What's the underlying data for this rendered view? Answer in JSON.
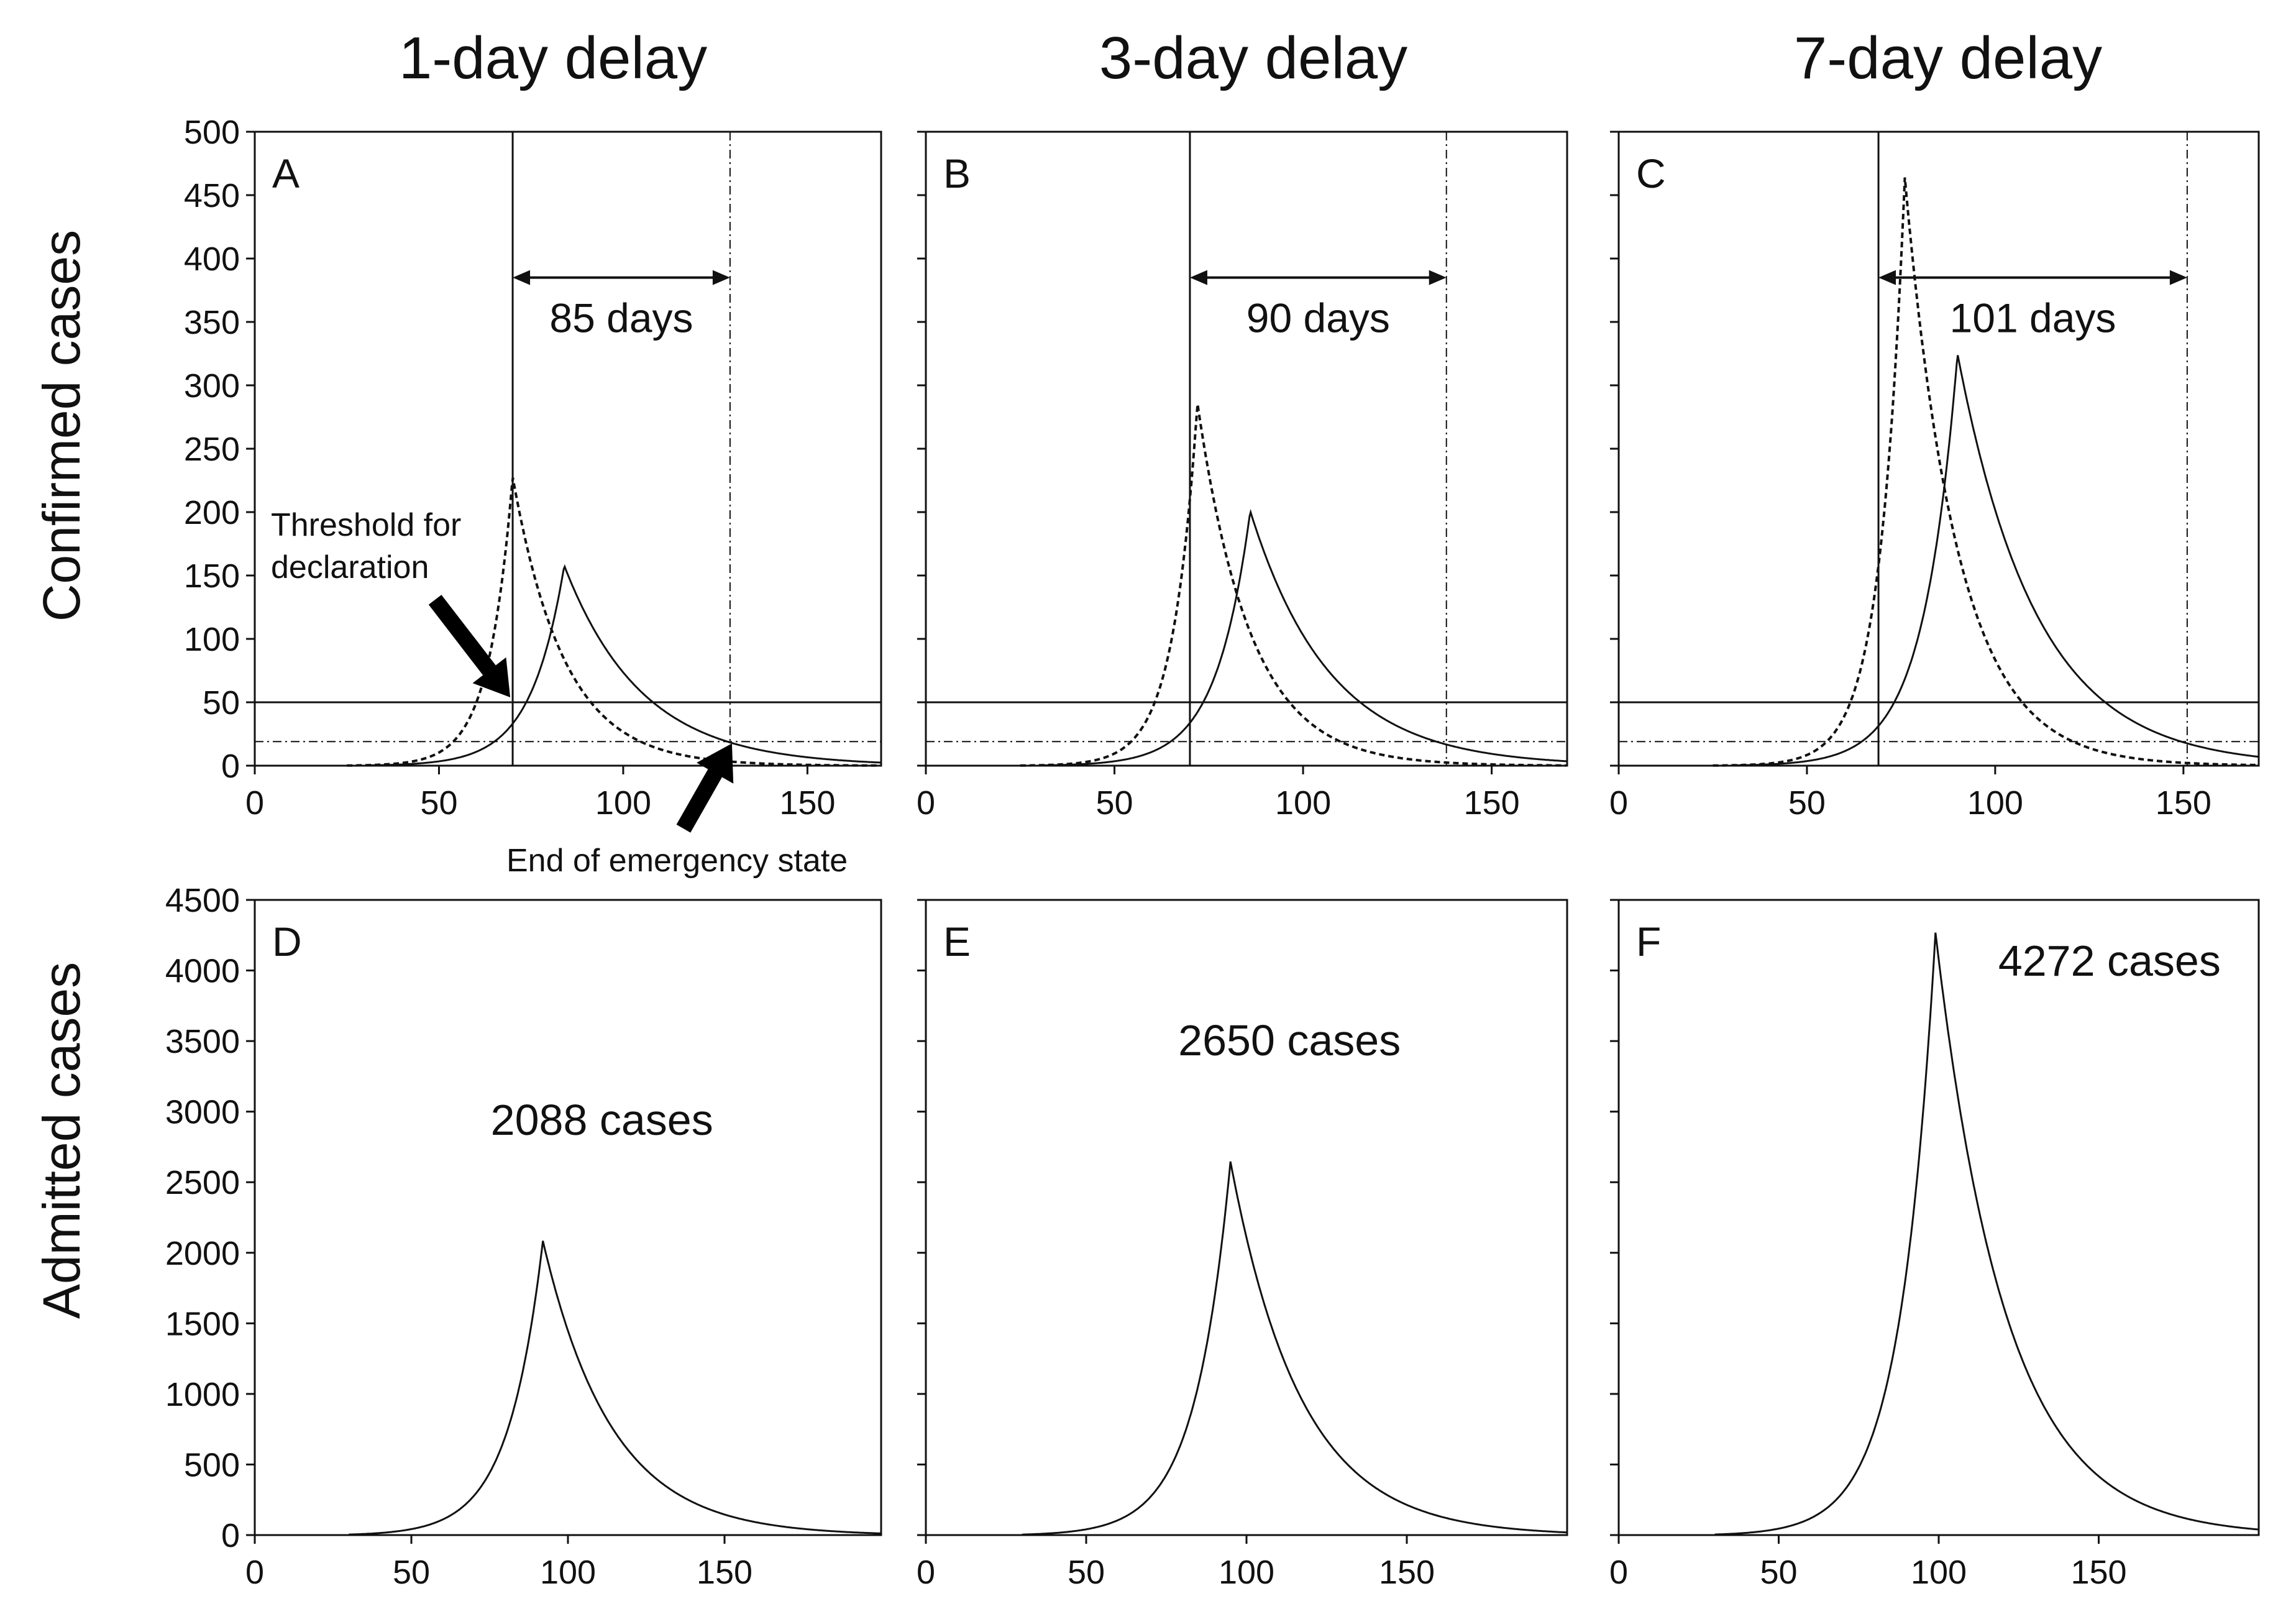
{
  "figure": {
    "column_titles": [
      "1-day delay",
      "3-day delay",
      "7-day delay"
    ],
    "row_ylabels": [
      "Confirmed cases",
      "Admitted cases"
    ],
    "annotations": {
      "threshold_label_line1": "Threshold for",
      "threshold_label_line2": "declaration",
      "end_label": "End of emergency state"
    }
  },
  "colors": {
    "line": "#111111",
    "axis": "#111111",
    "background": "#ffffff"
  },
  "chart_data": [
    {
      "panel": "A",
      "row": "confirmed",
      "type": "line",
      "title": "1-day delay",
      "xlabel": "",
      "ylabel": "Confirmed cases",
      "xlim": [
        0,
        170
      ],
      "ylim": [
        0,
        500
      ],
      "xticks": [
        0,
        50,
        100,
        150
      ],
      "yticks": [
        0,
        50,
        100,
        150,
        200,
        250,
        300,
        350,
        400,
        450,
        500
      ],
      "threshold_declaration": 50,
      "threshold_end": 19,
      "declaration_day": 70,
      "end_day": 129,
      "duration_label": "85 days",
      "series": [
        {
          "name": "daily new cases (dashed)",
          "style": "dashed",
          "start": 25,
          "peak_x": 70,
          "peak_y": 228,
          "rise": 6.5,
          "decay": 14
        },
        {
          "name": "confirmed cases (solid)",
          "style": "solid",
          "start": 30,
          "peak_x": 84,
          "peak_y": 158,
          "rise": 9,
          "decay": 21
        }
      ]
    },
    {
      "panel": "B",
      "row": "confirmed",
      "type": "line",
      "title": "3-day delay",
      "xlabel": "",
      "ylabel": "",
      "xlim": [
        0,
        170
      ],
      "ylim": [
        0,
        500
      ],
      "xticks": [
        0,
        50,
        100,
        150
      ],
      "yticks": [
        0,
        50,
        100,
        150,
        200,
        250,
        300,
        350,
        400,
        450,
        500
      ],
      "threshold_declaration": 50,
      "threshold_end": 19,
      "declaration_day": 70,
      "end_day": 138,
      "duration_label": "90 days",
      "series": [
        {
          "name": "daily new cases (dashed)",
          "style": "dashed",
          "start": 25,
          "peak_x": 72,
          "peak_y": 286,
          "rise": 6.5,
          "decay": 14
        },
        {
          "name": "confirmed cases (solid)",
          "style": "solid",
          "start": 30,
          "peak_x": 86,
          "peak_y": 201,
          "rise": 9,
          "decay": 21
        }
      ]
    },
    {
      "panel": "C",
      "row": "confirmed",
      "type": "line",
      "title": "7-day delay",
      "xlabel": "",
      "ylabel": "",
      "xlim": [
        0,
        170
      ],
      "ylim": [
        0,
        500
      ],
      "xticks": [
        0,
        50,
        100,
        150
      ],
      "yticks": [
        0,
        50,
        100,
        150,
        200,
        250,
        300,
        350,
        400,
        450,
        500
      ],
      "threshold_declaration": 50,
      "threshold_end": 19,
      "declaration_day": 69,
      "end_day": 151,
      "duration_label": "101 days",
      "series": [
        {
          "name": "daily new cases (dashed)",
          "style": "dashed",
          "start": 25,
          "peak_x": 76,
          "peak_y": 464,
          "rise": 6.5,
          "decay": 14
        },
        {
          "name": "confirmed cases (solid)",
          "style": "solid",
          "start": 30,
          "peak_x": 90,
          "peak_y": 325,
          "rise": 9,
          "decay": 21
        }
      ]
    },
    {
      "panel": "D",
      "row": "admitted",
      "type": "line",
      "title": "",
      "xlabel": "",
      "ylabel": "Admitted cases",
      "xlim": [
        0,
        200
      ],
      "ylim": [
        0,
        4500
      ],
      "xticks": [
        0,
        50,
        100,
        150
      ],
      "yticks": [
        0,
        500,
        1000,
        1500,
        2000,
        2500,
        3000,
        3500,
        4000,
        4500
      ],
      "peak_label": "2088 cases",
      "series": [
        {
          "name": "admitted cases",
          "style": "solid",
          "start": 30,
          "peak_x": 92,
          "peak_y": 2088,
          "rise": 11,
          "decay": 22
        }
      ]
    },
    {
      "panel": "E",
      "row": "admitted",
      "type": "line",
      "title": "",
      "xlabel": "",
      "ylabel": "",
      "xlim": [
        0,
        200
      ],
      "ylim": [
        0,
        4500
      ],
      "xticks": [
        0,
        50,
        100,
        150
      ],
      "yticks": [
        0,
        500,
        1000,
        1500,
        2000,
        2500,
        3000,
        3500,
        4000,
        4500
      ],
      "peak_label": "2650 cases",
      "series": [
        {
          "name": "admitted cases",
          "style": "solid",
          "start": 30,
          "peak_x": 95,
          "peak_y": 2650,
          "rise": 11,
          "decay": 22
        }
      ]
    },
    {
      "panel": "F",
      "row": "admitted",
      "type": "line",
      "title": "",
      "xlabel": "",
      "ylabel": "",
      "xlim": [
        0,
        200
      ],
      "ylim": [
        0,
        4500
      ],
      "xticks": [
        0,
        50,
        100,
        150
      ],
      "yticks": [
        0,
        500,
        1000,
        1500,
        2000,
        2500,
        3000,
        3500,
        4000,
        4500
      ],
      "peak_label": "4272 cases",
      "series": [
        {
          "name": "admitted cases",
          "style": "solid",
          "start": 30,
          "peak_x": 99,
          "peak_y": 4272,
          "rise": 11,
          "decay": 22
        }
      ]
    }
  ]
}
